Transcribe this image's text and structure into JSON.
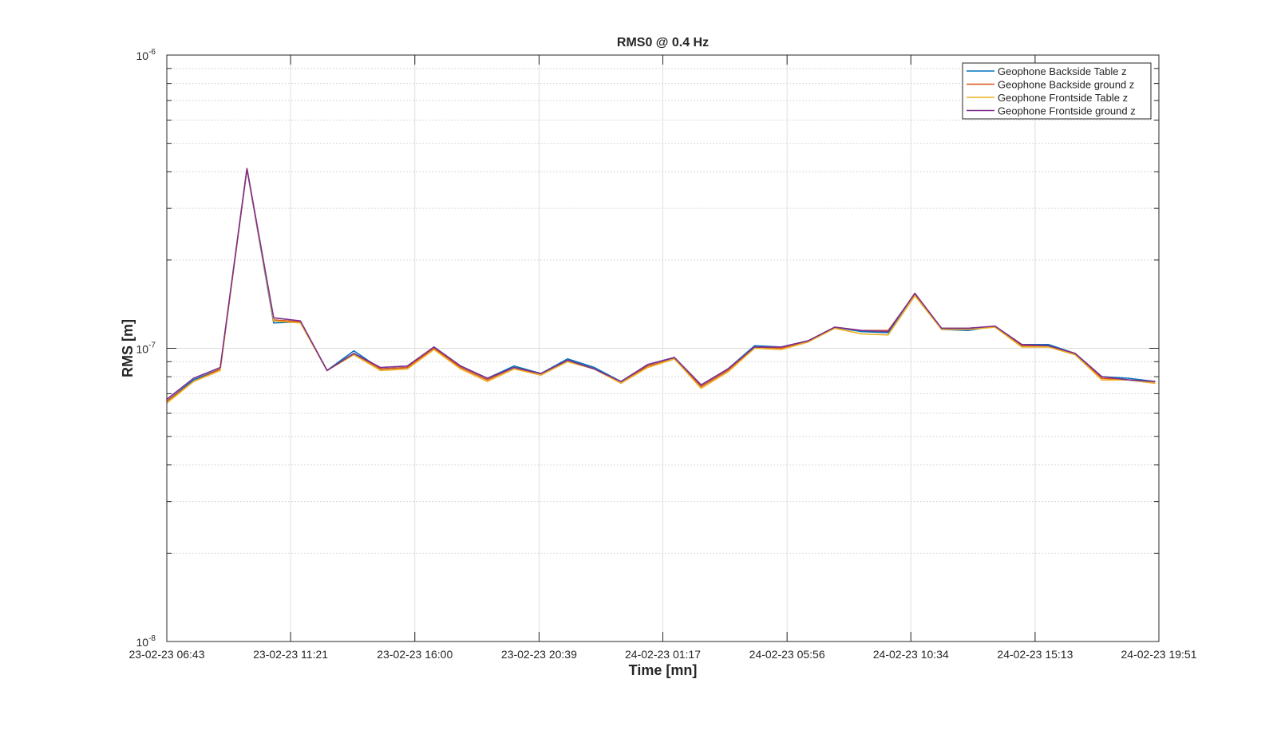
{
  "chart_data": {
    "type": "line",
    "title": "RMS0 @ 0.4 Hz",
    "xlabel": "Time [mn]",
    "ylabel": "RMS [m]",
    "yscale": "log",
    "ylim": [
      1e-08,
      1e-06
    ],
    "y_ticks": [
      {
        "value": 1e-08,
        "base": "10",
        "exp": "-8"
      },
      {
        "value": 1e-07,
        "base": "10",
        "exp": "-7"
      },
      {
        "value": 1e-06,
        "base": "10",
        "exp": "-6"
      }
    ],
    "x_ticks": [
      "23-02-23 06:43",
      "23-02-23 11:21",
      "23-02-23 16:00",
      "23-02-23 20:39",
      "24-02-23 01:17",
      "24-02-23 05:56",
      "24-02-23 10:34",
      "24-02-23 15:13",
      "24-02-23 19:51"
    ],
    "x": [
      "23-02-23 06:43",
      "23-02-23 07:43",
      "23-02-23 08:43",
      "23-02-23 09:43",
      "23-02-23 10:43",
      "23-02-23 11:43",
      "23-02-23 12:43",
      "23-02-23 13:43",
      "23-02-23 14:43",
      "23-02-23 15:43",
      "23-02-23 16:43",
      "23-02-23 17:43",
      "23-02-23 18:43",
      "23-02-23 19:43",
      "23-02-23 20:43",
      "23-02-23 21:43",
      "23-02-23 22:43",
      "23-02-23 23:43",
      "24-02-23 00:43",
      "24-02-23 01:43",
      "24-02-23 02:43",
      "24-02-23 03:43",
      "24-02-23 04:43",
      "24-02-23 05:43",
      "24-02-23 06:43",
      "24-02-23 07:43",
      "24-02-23 08:43",
      "24-02-23 09:43",
      "24-02-23 10:43",
      "24-02-23 11:43",
      "24-02-23 12:43",
      "24-02-23 13:43",
      "24-02-23 14:43",
      "24-02-23 15:43",
      "24-02-23 16:43",
      "24-02-23 17:43",
      "24-02-23 18:43",
      "24-02-23 19:43"
    ],
    "grid": true,
    "legend_position": "top-right",
    "series": [
      {
        "name": "Geophone Backside Table z",
        "color": "#0072BD",
        "values": [
          6.6e-08,
          7.8e-08,
          8.5e-08,
          4.1e-07,
          1.22e-07,
          1.23e-07,
          8.4e-08,
          9.8e-08,
          8.5e-08,
          8.6e-08,
          1.01e-07,
          8.7e-08,
          7.9e-08,
          8.7e-08,
          8.2e-08,
          9.2e-08,
          8.6e-08,
          7.7e-08,
          8.8e-08,
          9.3e-08,
          7.5e-08,
          8.5e-08,
          1.02e-07,
          1.01e-07,
          1.06e-07,
          1.18e-07,
          1.14e-07,
          1.13e-07,
          1.54e-07,
          1.16e-07,
          1.15e-07,
          1.19e-07,
          1.03e-07,
          1.03e-07,
          9.6e-08,
          8e-08,
          7.9e-08,
          7.7e-08
        ]
      },
      {
        "name": "Geophone Backside ground z",
        "color": "#D95319",
        "values": [
          6.6e-08,
          7.7e-08,
          8.5e-08,
          4.1e-07,
          1.25e-07,
          1.23e-07,
          8.4e-08,
          9.6e-08,
          8.5e-08,
          8.6e-08,
          1e-07,
          8.6e-08,
          7.8e-08,
          8.6e-08,
          8.1e-08,
          9.1e-08,
          8.5e-08,
          7.6e-08,
          8.7e-08,
          9.2e-08,
          7.4e-08,
          8.4e-08,
          1.01e-07,
          1e-07,
          1.06e-07,
          1.18e-07,
          1.15e-07,
          1.15e-07,
          1.53e-07,
          1.17e-07,
          1.17e-07,
          1.19e-07,
          1.02e-07,
          1.02e-07,
          9.6e-08,
          7.9e-08,
          7.8e-08,
          7.6e-08
        ]
      },
      {
        "name": "Geophone Frontside Table z",
        "color": "#EDB120",
        "values": [
          6.5e-08,
          7.7e-08,
          8.4e-08,
          4.1e-07,
          1.24e-07,
          1.22e-07,
          8.4e-08,
          9.5e-08,
          8.4e-08,
          8.5e-08,
          9.9e-08,
          8.5e-08,
          7.7e-08,
          8.5e-08,
          8.1e-08,
          9e-08,
          8.5e-08,
          7.6e-08,
          8.6e-08,
          9.2e-08,
          7.3e-08,
          8.3e-08,
          1e-07,
          9.9e-08,
          1.05e-07,
          1.17e-07,
          1.12e-07,
          1.11e-07,
          1.51e-07,
          1.16e-07,
          1.16e-07,
          1.18e-07,
          1.01e-07,
          1.01e-07,
          9.5e-08,
          7.8e-08,
          7.8e-08,
          7.6e-08
        ]
      },
      {
        "name": "Geophone Frontside ground z",
        "color": "#7E2F8E",
        "values": [
          6.7e-08,
          7.9e-08,
          8.6e-08,
          4.1e-07,
          1.27e-07,
          1.24e-07,
          8.4e-08,
          9.6e-08,
          8.6e-08,
          8.7e-08,
          1.01e-07,
          8.7e-08,
          7.9e-08,
          8.6e-08,
          8.2e-08,
          9.1e-08,
          8.5e-08,
          7.7e-08,
          8.8e-08,
          9.3e-08,
          7.5e-08,
          8.5e-08,
          1.01e-07,
          1.01e-07,
          1.06e-07,
          1.18e-07,
          1.15e-07,
          1.14e-07,
          1.54e-07,
          1.17e-07,
          1.17e-07,
          1.19e-07,
          1.03e-07,
          1.02e-07,
          9.6e-08,
          8e-08,
          7.8e-08,
          7.7e-08
        ]
      }
    ]
  }
}
